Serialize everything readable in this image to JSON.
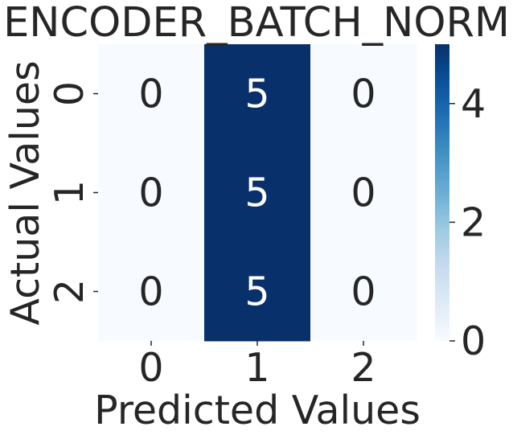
{
  "chart_data": {
    "type": "heatmap",
    "title": "ENCODER_BATCH_NORM",
    "xlabel": "Predicted Values",
    "ylabel": "Actual Values",
    "x_categories": [
      "0",
      "1",
      "2"
    ],
    "y_categories": [
      "0",
      "1",
      "2"
    ],
    "values": [
      [
        0,
        5,
        0
      ],
      [
        0,
        5,
        0
      ],
      [
        0,
        5,
        0
      ]
    ],
    "colorbar": {
      "range": [
        0,
        5
      ],
      "ticks": [
        "0",
        "2",
        "4"
      ],
      "colormap": "Blues"
    },
    "colors": {
      "low": "#f7fbff",
      "high": "#08306b",
      "text_dark": "#262626",
      "text_light": "#ffffff"
    }
  }
}
